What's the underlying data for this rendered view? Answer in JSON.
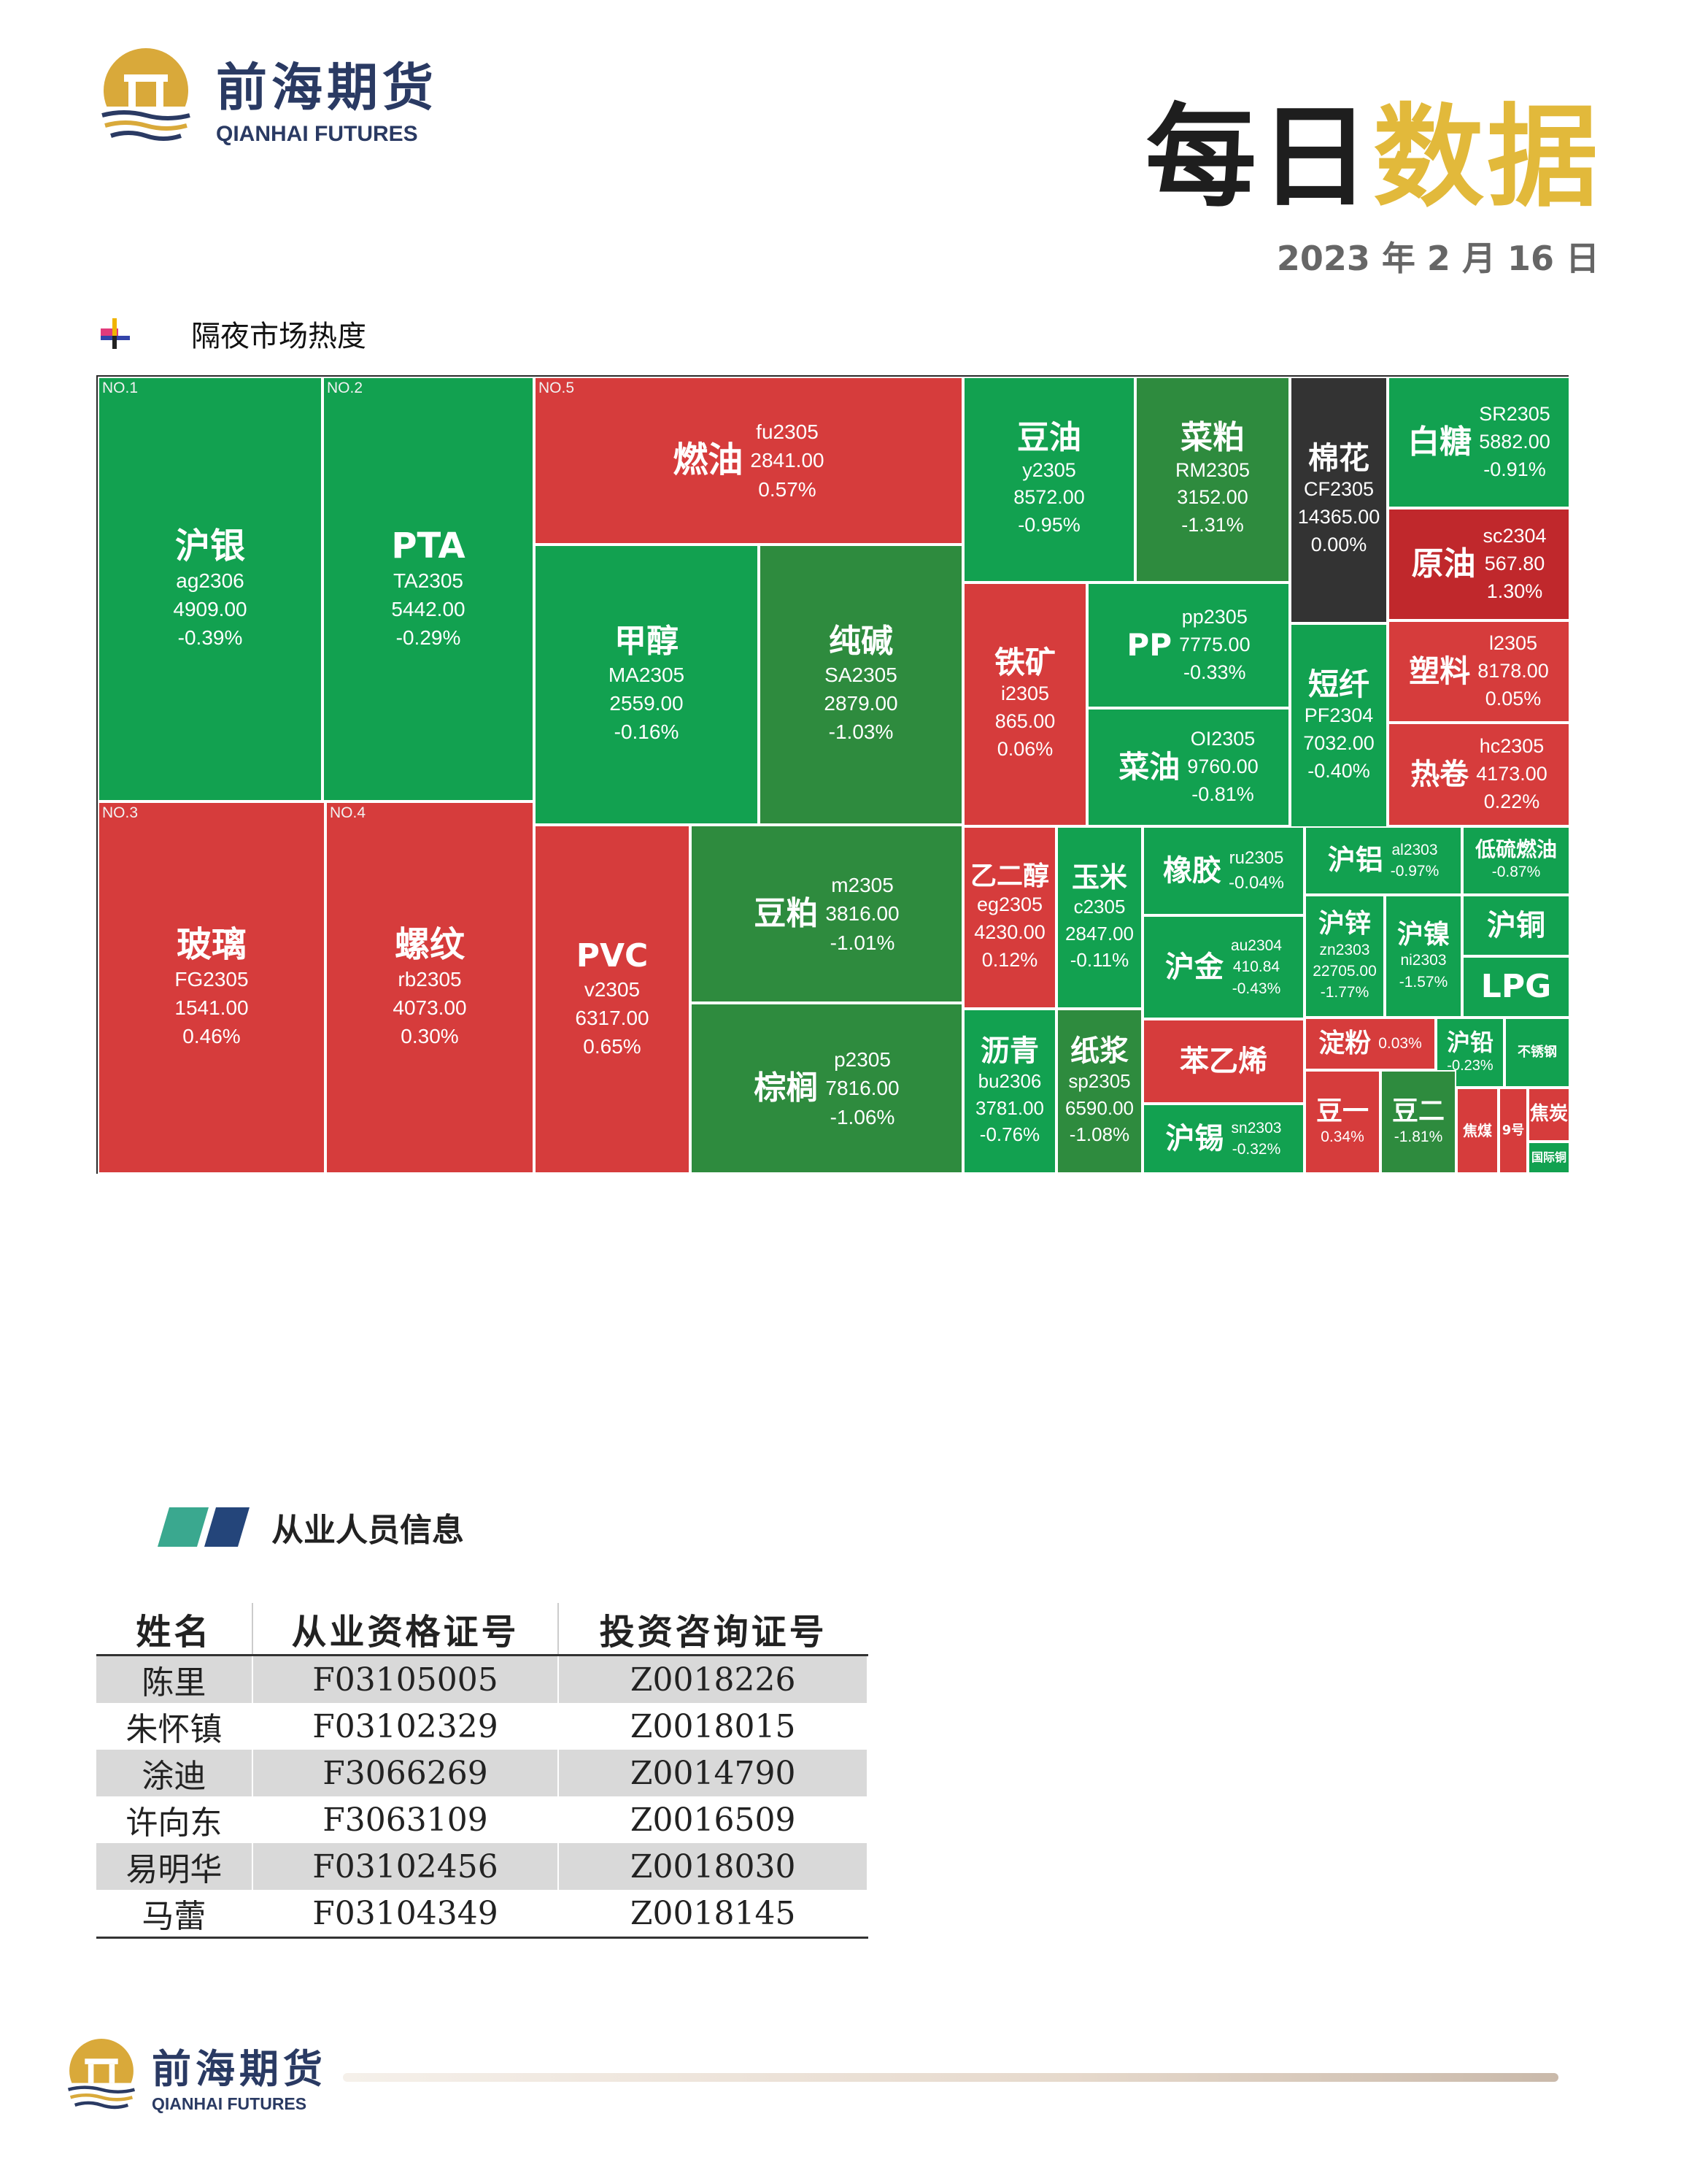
{
  "header": {
    "logo_cn": "前海期货",
    "logo_en": "QIANHAI FUTURES",
    "title_part1": "每日",
    "title_part2": "数据",
    "date": "2023 年 2 月 16 日"
  },
  "colors": {
    "brand_navy": "#2a3a63",
    "brand_gold": "#e2b93b",
    "up_red": "#d63c3c",
    "down_green": "#12a150"
  },
  "section_heat": {
    "label": "隔夜市场热度",
    "icon": "plus-cross-icon"
  },
  "treemap": {
    "cells": [
      {
        "rank": "NO.1",
        "name": "沪银",
        "code": "ag2306",
        "price": "4909.00",
        "change": "-0.39%"
      },
      {
        "rank": "NO.2",
        "name": "PTA",
        "code": "TA2305",
        "price": "5442.00",
        "change": "-0.29%"
      },
      {
        "rank": "NO.3",
        "name": "玻璃",
        "code": "FG2305",
        "price": "1541.00",
        "change": "0.46%"
      },
      {
        "rank": "NO.4",
        "name": "螺纹",
        "code": "rb2305",
        "price": "4073.00",
        "change": "0.30%"
      },
      {
        "rank": "NO.5",
        "name": "燃油",
        "code": "fu2305",
        "price": "2841.00",
        "change": "0.57%"
      },
      {
        "name": "甲醇",
        "code": "MA2305",
        "price": "2559.00",
        "change": "-0.16%"
      },
      {
        "name": "纯碱",
        "code": "SA2305",
        "price": "2879.00",
        "change": "-1.03%"
      },
      {
        "name": "PVC",
        "code": "v2305",
        "price": "6317.00",
        "change": "0.65%"
      },
      {
        "name": "豆粕",
        "code": "m2305",
        "price": "3816.00",
        "change": "-1.01%"
      },
      {
        "name": "棕榈",
        "code": "p2305",
        "price": "7816.00",
        "change": "-1.06%"
      },
      {
        "name": "豆油",
        "code": "y2305",
        "price": "8572.00",
        "change": "-0.95%"
      },
      {
        "name": "菜粕",
        "code": "RM2305",
        "price": "3152.00",
        "change": "-1.31%"
      },
      {
        "name": "棉花",
        "code": "CF2305",
        "price": "14365.00",
        "change": "0.00%"
      },
      {
        "name": "白糖",
        "code": "SR2305",
        "price": "5882.00",
        "change": "-0.91%"
      },
      {
        "name": "原油",
        "code": "sc2304",
        "price": "567.80",
        "change": "1.30%"
      },
      {
        "name": "铁矿",
        "code": "i2305",
        "price": "865.00",
        "change": "0.06%"
      },
      {
        "name": "PP",
        "code": "pp2305",
        "price": "7775.00",
        "change": "-0.33%"
      },
      {
        "name": "菜油",
        "code": "OI2305",
        "price": "9760.00",
        "change": "-0.81%"
      },
      {
        "name": "短纤",
        "code": "PF2304",
        "price": "7032.00",
        "change": "-0.40%"
      },
      {
        "name": "塑料",
        "code": "l2305",
        "price": "8178.00",
        "change": "0.05%"
      },
      {
        "name": "热卷",
        "code": "hc2305",
        "price": "4173.00",
        "change": "0.22%"
      },
      {
        "name": "乙二醇",
        "code": "eg2305",
        "price": "4230.00",
        "change": "0.12%"
      },
      {
        "name": "玉米",
        "code": "c2305",
        "price": "2847.00",
        "change": "-0.11%"
      },
      {
        "name": "橡胶",
        "code": "ru2305",
        "change": "-0.04%"
      },
      {
        "name": "沪铝",
        "code": "al2303",
        "change": "-0.97%"
      },
      {
        "name": "低硫燃油",
        "change": "-0.87%"
      },
      {
        "name": "沪金",
        "code": "au2304",
        "price": "410.84",
        "change": "-0.43%"
      },
      {
        "name": "沪锌",
        "code": "zn2303",
        "price": "22705.00",
        "change": "-1.77%"
      },
      {
        "name": "沪镍",
        "code": "ni2303",
        "change": "-1.57%"
      },
      {
        "name": "沪铜"
      },
      {
        "name": "LPG"
      },
      {
        "name": "沥青",
        "code": "bu2306",
        "price": "3781.00",
        "change": "-0.76%"
      },
      {
        "name": "纸浆",
        "code": "sp2305",
        "price": "6590.00",
        "change": "-1.08%"
      },
      {
        "name": "苯乙烯"
      },
      {
        "name": "淀粉",
        "change": "0.03%"
      },
      {
        "name": "沪铅",
        "change": "-0.23%"
      },
      {
        "name": "不锈钢"
      },
      {
        "name": "沪锡",
        "code": "sn2303",
        "change": "-0.32%"
      },
      {
        "name": "豆一",
        "change": "0.34%"
      },
      {
        "name": "豆二",
        "change": "-1.81%"
      },
      {
        "name": "焦煤"
      },
      {
        "name": "9号"
      },
      {
        "name": "焦炭"
      },
      {
        "name": "国际铜"
      }
    ]
  },
  "section_staff": {
    "label": "从业人员信息"
  },
  "staff_table": {
    "headers": [
      "姓名",
      "从业资格证号",
      "投资咨询证号"
    ],
    "rows": [
      [
        "陈里",
        "F03105005",
        "Z0018226"
      ],
      [
        "朱怀镇",
        "F03102329",
        "Z0018015"
      ],
      [
        "涂迪",
        "F3066269",
        "Z0014790"
      ],
      [
        "许向东",
        "F3063109",
        "Z0016509"
      ],
      [
        "易明华",
        "F03102456",
        "Z0018030"
      ],
      [
        "马蕾",
        "F03104349",
        "Z0018145"
      ]
    ]
  },
  "footer": {
    "logo_cn": "前海期货",
    "logo_en": "QIANHAI FUTURES"
  }
}
